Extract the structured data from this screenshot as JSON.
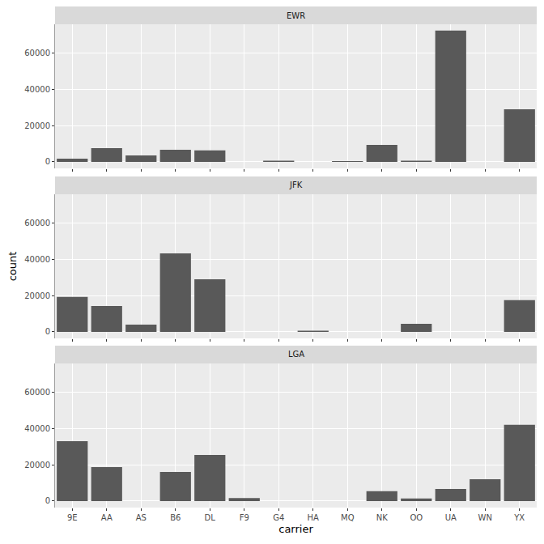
{
  "chart_data": {
    "type": "bar",
    "x_label": "carrier",
    "y_label": "count",
    "categories": [
      "9E",
      "AA",
      "AS",
      "B6",
      "DL",
      "F9",
      "G4",
      "HA",
      "MQ",
      "NK",
      "OO",
      "UA",
      "WN",
      "YX"
    ],
    "series": [
      {
        "name": "EWR",
        "color": "#595959",
        "values": [
          1800,
          7600,
          3600,
          6700,
          6300,
          0,
          600,
          0,
          400,
          9400,
          600,
          72500,
          0,
          29100
        ]
      },
      {
        "name": "JFK",
        "color": "#595959",
        "values": [
          19300,
          14300,
          4000,
          43400,
          29100,
          0,
          0,
          700,
          0,
          0,
          4500,
          0,
          0,
          17500
        ]
      },
      {
        "name": "LGA",
        "color": "#595959",
        "values": [
          33100,
          18800,
          0,
          16100,
          25500,
          1600,
          0,
          0,
          0,
          5400,
          1400,
          6700,
          12100,
          42100
        ]
      }
    ],
    "ylim": [
      -3600,
      76000
    ],
    "yticks": [
      0,
      20000,
      40000,
      60000
    ],
    "grid": true
  }
}
